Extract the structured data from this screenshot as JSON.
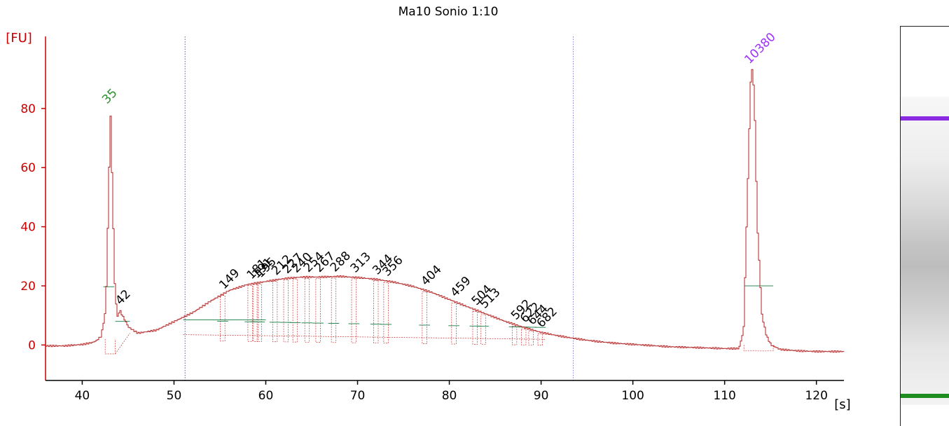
{
  "chart_data": {
    "type": "line",
    "title": "Ma10 Sonio 1:10",
    "ylabel": "[FU]",
    "xlabel": "[s]",
    "xlim": [
      36,
      123
    ],
    "ylim": [
      -12,
      102
    ],
    "xticks": [
      40,
      50,
      60,
      70,
      80,
      90,
      100,
      110,
      120
    ],
    "yticks": [
      0,
      20,
      40,
      60,
      80
    ],
    "grid": false,
    "colors": {
      "axis": "#cc0000",
      "trace": "#b22222",
      "lower_marker": "#2e8b2e",
      "upper_marker": "#9b30ff",
      "peak_label": "#000000",
      "baseline": "#2e8b57"
    },
    "trace": {
      "x": [
        36,
        38,
        40,
        41,
        41.5,
        42,
        42.5,
        42.8,
        43.0,
        43.2,
        43.5,
        43.8,
        44.0,
        44.3,
        45,
        46,
        48,
        50,
        52,
        54,
        56,
        58,
        60,
        62,
        64,
        66,
        68,
        70,
        72,
        74,
        76,
        78,
        80,
        82,
        84,
        86,
        88,
        90,
        92,
        94,
        96,
        98,
        100,
        102,
        104,
        106,
        108,
        110,
        111.5,
        112,
        112.5,
        112.8,
        113.0,
        113.2,
        113.5,
        114,
        114.5,
        115,
        116,
        118,
        120,
        123
      ],
      "y": [
        -0.3,
        -0.3,
        0.2,
        0.8,
        1.5,
        3,
        12,
        50,
        80,
        55,
        18,
        9,
        12,
        10,
        6,
        4,
        5,
        8,
        11,
        15,
        18.5,
        20.5,
        21.5,
        22.5,
        23,
        23,
        23.2,
        22.8,
        22.2,
        21.2,
        19.8,
        17.8,
        15.3,
        12.8,
        10.4,
        8,
        6,
        4.2,
        3,
        2,
        1.2,
        0.6,
        0.2,
        -0.2,
        -0.6,
        -0.8,
        -1,
        -1.2,
        -1.2,
        5,
        60,
        92,
        93.5,
        80,
        40,
        10,
        3,
        0,
        -1.5,
        -2,
        -2.2,
        -2.2
      ]
    },
    "markers": [
      {
        "label": "35",
        "x": 43.0,
        "y": 80,
        "type": "lower"
      },
      {
        "label": "10380",
        "x": 113.0,
        "y": 93.5,
        "type": "upper"
      }
    ],
    "peaks": [
      {
        "label": "42",
        "x": 44.0
      },
      {
        "label": "149",
        "x": 55.3
      },
      {
        "label": "181",
        "x": 58.3
      },
      {
        "label": "191",
        "x": 58.9
      },
      {
        "label": "195",
        "x": 59.3
      },
      {
        "label": "212",
        "x": 61.0
      },
      {
        "label": "227",
        "x": 62.2
      },
      {
        "label": "240",
        "x": 63.2
      },
      {
        "label": "254",
        "x": 64.5
      },
      {
        "label": "267",
        "x": 65.7
      },
      {
        "label": "288",
        "x": 67.4
      },
      {
        "label": "313",
        "x": 69.6
      },
      {
        "label": "344",
        "x": 72.0
      },
      {
        "label": "356",
        "x": 73.1
      },
      {
        "label": "404",
        "x": 77.3
      },
      {
        "label": "459",
        "x": 80.5
      },
      {
        "label": "504",
        "x": 82.8
      },
      {
        "label": "513",
        "x": 83.7
      },
      {
        "label": "592",
        "x": 87.1
      },
      {
        "label": "622",
        "x": 88.1
      },
      {
        "label": "644",
        "x": 88.9
      },
      {
        "label": "682",
        "x": 89.9
      }
    ],
    "region": {
      "start": 51.2,
      "end": 93.5
    },
    "gel_bands": [
      {
        "name": "upper-marker-band",
        "position": 0.07,
        "color": "#8a2be2"
      },
      {
        "name": "lower-marker-band",
        "position": 0.97,
        "color": "#1e8c1e"
      }
    ]
  }
}
